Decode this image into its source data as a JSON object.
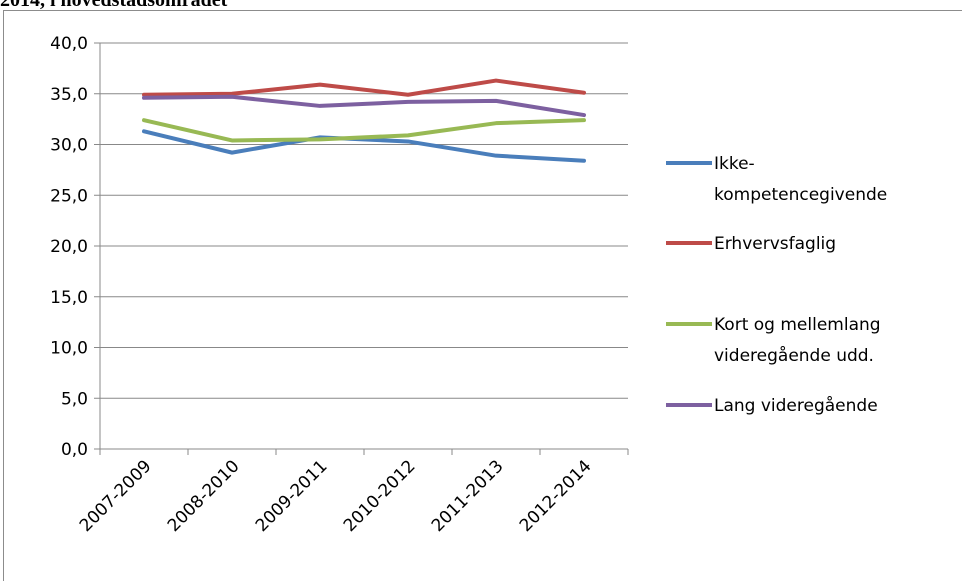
{
  "header": {
    "clipped_title": "2014, i hovedstadsområdet"
  },
  "chart_data": {
    "type": "line",
    "categories": [
      "2007-2009",
      "2008-2010",
      "2009-2011",
      "2010-2012",
      "2011-2013",
      "2012-2014"
    ],
    "ylim": [
      0,
      40
    ],
    "yticks": [
      "0,0",
      "5,0",
      "10,0",
      "15,0",
      "20,0",
      "25,0",
      "30,0",
      "35,0",
      "40,0"
    ],
    "grid": true,
    "legend_position": "right",
    "series": [
      {
        "name": "Ikke-kompetencegivende",
        "legend_lines": [
          "Ikke-",
          "kompetencegivende"
        ],
        "color": "#4a7ebb",
        "values": [
          31.3,
          29.2,
          30.7,
          30.3,
          28.9,
          28.4
        ]
      },
      {
        "name": "Erhvervsfaglig",
        "legend_lines": [
          "Erhvervsfaglig"
        ],
        "color": "#be4b48",
        "values": [
          34.9,
          35.0,
          35.9,
          34.9,
          36.3,
          35.1
        ]
      },
      {
        "name": "Kort og mellemlang videregående udd.",
        "legend_lines": [
          "Kort og mellemlang",
          "videregående udd."
        ],
        "color": "#98b954",
        "values": [
          32.4,
          30.4,
          30.5,
          30.9,
          32.1,
          32.4
        ]
      },
      {
        "name": "Lang videregående",
        "legend_lines": [
          "Lang videregående"
        ],
        "color": "#7d60a0",
        "values": [
          34.6,
          34.7,
          33.8,
          34.2,
          34.3,
          32.9
        ]
      }
    ]
  }
}
